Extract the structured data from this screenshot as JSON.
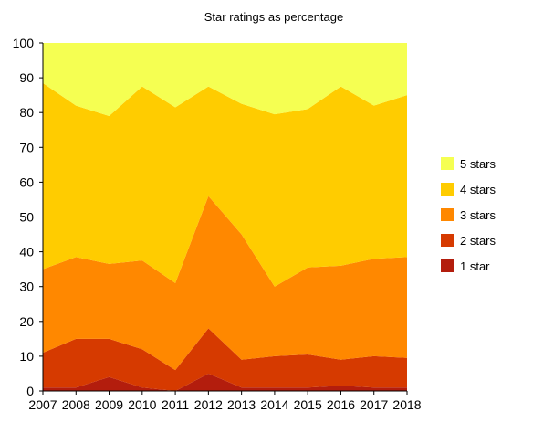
{
  "chart_data": {
    "type": "area",
    "stacked": true,
    "title": "Star ratings as percentage",
    "xlabel": "",
    "ylabel": "",
    "x": [
      2007,
      2008,
      2009,
      2010,
      2011,
      2012,
      2013,
      2014,
      2015,
      2016,
      2017,
      2018
    ],
    "ylim": [
      0,
      100
    ],
    "yticks": [
      0,
      10,
      20,
      30,
      40,
      50,
      60,
      70,
      80,
      90,
      100
    ],
    "grid": false,
    "legend_position": "right",
    "series": [
      {
        "name": "1 star",
        "color": "#b31d0d",
        "values": [
          1,
          1,
          4,
          1,
          0,
          5,
          1,
          1,
          1,
          1.5,
          1,
          1
        ]
      },
      {
        "name": "2 stars",
        "color": "#d63a00",
        "values": [
          10,
          14,
          11,
          11,
          6,
          13,
          8,
          9,
          9.5,
          7.5,
          9,
          8.5
        ]
      },
      {
        "name": "3 stars",
        "color": "#ff8800",
        "values": [
          24,
          23.5,
          21.5,
          25.5,
          25,
          38,
          36,
          20,
          25,
          27,
          28,
          29
        ]
      },
      {
        "name": "4 stars",
        "color": "#ffcc00",
        "values": [
          53.5,
          43.5,
          42.5,
          50,
          50.5,
          31.5,
          37.5,
          49.5,
          45.5,
          51.5,
          44,
          46.5
        ]
      },
      {
        "name": "5 stars",
        "color": "#f5ff52",
        "values": [
          11.5,
          18,
          21,
          12.5,
          18.5,
          12.5,
          17.5,
          20.5,
          19,
          12.5,
          18,
          15
        ]
      }
    ]
  }
}
